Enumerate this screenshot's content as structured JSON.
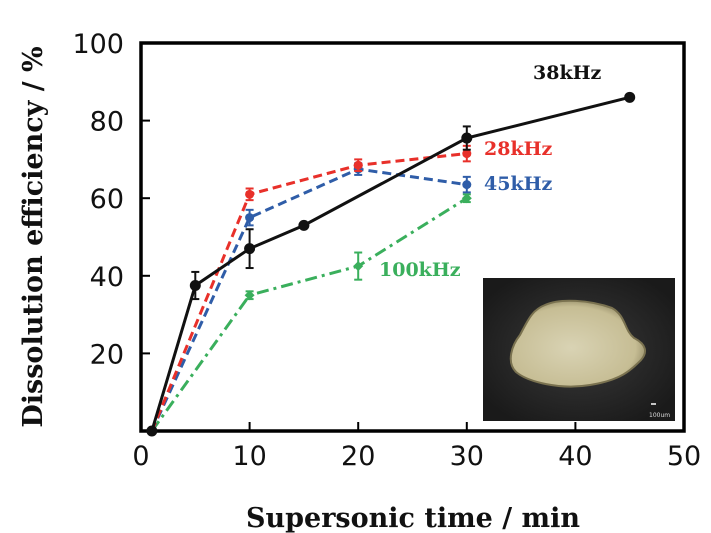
{
  "chart_data": {
    "type": "line",
    "title": "",
    "xlabel": "Supersonic time / min",
    "ylabel": "Dissolution efficiency / %",
    "xlim": [
      0,
      50
    ],
    "ylim": [
      0,
      100
    ],
    "xticks": [
      0,
      10,
      20,
      30,
      40,
      50
    ],
    "yticks": [
      20,
      40,
      60,
      80,
      100
    ],
    "grid": false,
    "legend": "inline labels at series ends",
    "series": [
      {
        "name": "38kHz",
        "color": "#111111",
        "line_style": "solid",
        "marker": "circle",
        "x": [
          1,
          5,
          10,
          15,
          30,
          45
        ],
        "y": [
          0,
          37.5,
          47,
          53,
          75.5,
          86
        ],
        "err": [
          0,
          3.5,
          5,
          0,
          3,
          0
        ]
      },
      {
        "name": "28kHz",
        "color": "#e8302a",
        "line_style": "dashed",
        "marker": "circle",
        "x": [
          1,
          10,
          20,
          30
        ],
        "y": [
          0,
          61,
          68.5,
          71.5
        ],
        "err": [
          0,
          1.5,
          1.5,
          2
        ]
      },
      {
        "name": "45kHz",
        "color": "#2f5da8",
        "line_style": "dashed",
        "marker": "circle",
        "x": [
          1,
          10,
          20,
          30
        ],
        "y": [
          0,
          55,
          67.5,
          63.5
        ],
        "err": [
          0,
          2,
          1.5,
          2
        ]
      },
      {
        "name": "100kHz",
        "color": "#3aaf5c",
        "line_style": "dashdot",
        "marker": "diamond",
        "x": [
          1,
          10,
          20,
          30
        ],
        "y": [
          0,
          35,
          42.5,
          60
        ],
        "err": [
          0,
          1,
          3.5,
          1
        ]
      }
    ],
    "inset": {
      "type": "micrograph photo",
      "scale_bar_text": "100um"
    }
  }
}
